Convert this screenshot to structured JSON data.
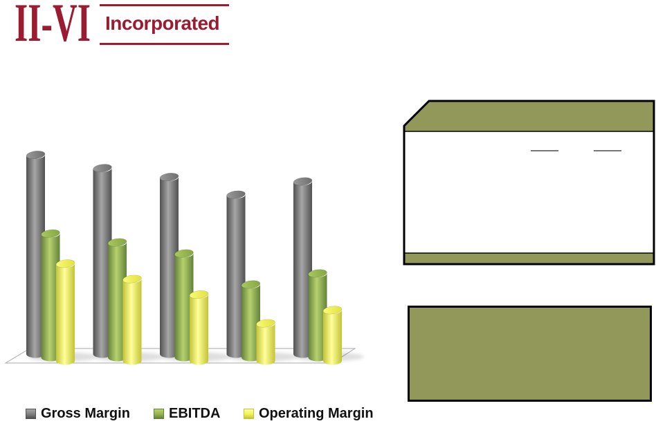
{
  "page": {
    "background": "#FFFFFF"
  },
  "logo": {
    "symbol": "II-VI",
    "text": "Incorporated",
    "color": "#9B1B30"
  },
  "chart_data": {
    "type": "bar",
    "style": "3d-cylinder",
    "title": "",
    "xlabel": "",
    "ylabel": "",
    "categories": [
      "",
      "",
      "",
      "",
      ""
    ],
    "series": [
      {
        "name": "Gross Margin",
        "color": "#7F7F7F",
        "shade_dark": "#515151",
        "shade_light": "#A6A6A6",
        "top_color": "#6F6F6F",
        "top_light": "#999999",
        "values": [
          45,
          42,
          40,
          36,
          39
        ]
      },
      {
        "name": "EBITDA",
        "color": "#94B350",
        "shade_dark": "#64813A",
        "shade_light": "#B6D26E",
        "top_color": "#85A644",
        "top_light": "#A8C85F",
        "values": [
          28,
          26,
          23.5,
          16.5,
          19
        ]
      },
      {
        "name": "Operating Margin",
        "color": "#F2F253",
        "shade_dark": "#C3C336",
        "shade_light": "#FFFF9A",
        "top_color": "#E2E23E",
        "top_light": "#FAFA77",
        "values": [
          22,
          18.5,
          15,
          8.5,
          11.5
        ]
      }
    ],
    "ylim": [
      0,
      50
    ],
    "gridlines": false,
    "axis_labels_visible": false,
    "legend_position": "bottom",
    "floor_fill": "#FDFDFD",
    "floor_stroke": "#ABABAB"
  },
  "panels": {
    "top_box": {
      "band_color": "#92985A",
      "body_color": "#FFFFFF",
      "border_color": "#000000",
      "underline_color": "#4A4A4A",
      "blank_underlines": 2
    },
    "bottom_box": {
      "fill": "#92985A",
      "border_color": "#000000"
    }
  }
}
